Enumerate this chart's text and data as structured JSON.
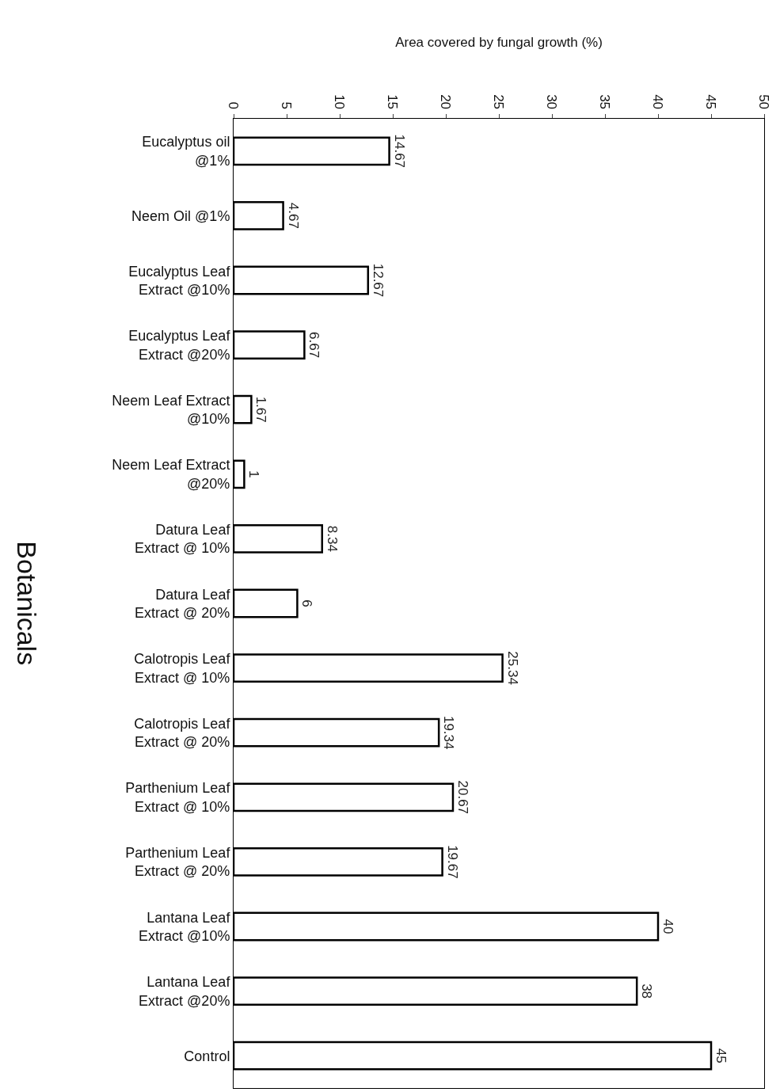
{
  "chart_data": {
    "type": "bar",
    "orientation": "horizontal",
    "xlabel": "Area covered by fungal growth (%)",
    "ylabel": "Botanicals",
    "categories": [
      "Eucalyptus oil @1%",
      "Neem Oil @1%",
      "Eucalyptus Leaf Extract @10%",
      "Eucalyptus Leaf Extract @20%",
      "Neem Leaf Extract @10%",
      "Neem Leaf Extract @20%",
      "Datura Leaf Extract @ 10%",
      "Datura Leaf Extract @ 20%",
      "Calotropis Leaf Extract @ 10%",
      "Calotropis Leaf Extract @ 20%",
      "Parthenium Leaf Extract @ 10%",
      "Parthenium Leaf Extract @ 20%",
      "Lantana Leaf Extract @10%",
      "Lantana Leaf Extract @20%",
      "Control"
    ],
    "values": [
      14.67,
      4.67,
      12.67,
      6.67,
      1.67,
      1,
      8.34,
      6,
      25.34,
      19.34,
      20.67,
      19.67,
      40,
      38,
      45
    ],
    "color": "#ffffff",
    "data_labels": true,
    "xlim": [
      0,
      50
    ],
    "xticks": [
      0,
      5,
      10,
      15,
      20,
      25,
      30,
      35,
      40,
      45,
      50
    ]
  }
}
